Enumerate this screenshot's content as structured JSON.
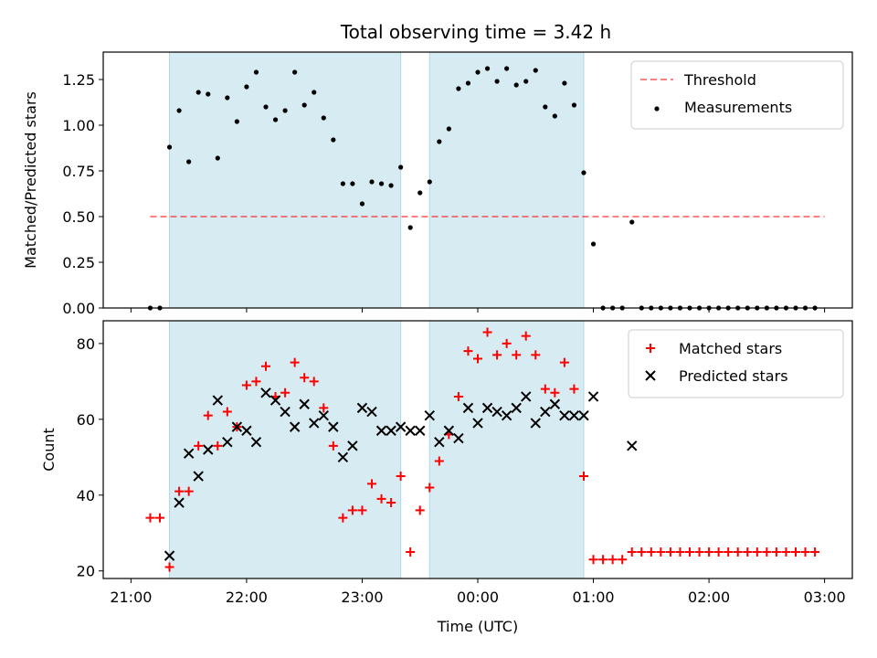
{
  "title": "Total observing time = 3.42 h",
  "colors": {
    "shade": "#add8e6",
    "threshold": "#ff0000",
    "measurement": "#000000",
    "matched": "#ff0000",
    "predicted": "#000000"
  },
  "chart_data": [
    {
      "type": "scatter",
      "id": "ratio",
      "ylabel": "Matched/Predicted stars",
      "xlim": [
        "21:00",
        "03:00"
      ],
      "ylim": [
        0,
        1.4
      ],
      "yticks": [
        0,
        0.25,
        0.5,
        0.75,
        1.0,
        1.25
      ],
      "ytick_labels": [
        "0.00",
        "0.25",
        "0.50",
        "0.75",
        "1.00",
        "1.25"
      ],
      "grid": false,
      "legend_position": "top-right",
      "legend": [
        "Threshold",
        "Measurements"
      ],
      "shaded_intervals": [
        [
          "21:20",
          "23:20"
        ],
        [
          "23:35",
          "00:55"
        ]
      ],
      "threshold": {
        "name": "Threshold",
        "y": 0.5,
        "x": [
          "21:10",
          "03:00"
        ]
      },
      "series": [
        {
          "name": "Measurements",
          "x": [
            "21:10",
            "21:15",
            "21:20",
            "21:25",
            "21:30",
            "21:35",
            "21:40",
            "21:45",
            "21:50",
            "21:55",
            "22:00",
            "22:05",
            "22:10",
            "22:15",
            "22:20",
            "22:25",
            "22:30",
            "22:35",
            "22:40",
            "22:45",
            "22:50",
            "22:55",
            "23:00",
            "23:05",
            "23:10",
            "23:15",
            "23:20",
            "23:25",
            "23:30",
            "23:35",
            "23:40",
            "23:45",
            "23:50",
            "23:55",
            "00:00",
            "00:05",
            "00:10",
            "00:15",
            "00:20",
            "00:25",
            "00:30",
            "00:35",
            "00:40",
            "00:45",
            "00:50",
            "00:55",
            "01:00",
            "01:05",
            "01:10",
            "01:15",
            "01:20",
            "01:25",
            "01:30",
            "01:35",
            "01:40",
            "01:45",
            "01:50",
            "01:55",
            "02:00",
            "02:05",
            "02:10",
            "02:15",
            "02:20",
            "02:25",
            "02:30",
            "02:35",
            "02:40",
            "02:45",
            "02:50",
            "02:55"
          ],
          "y": [
            0,
            0,
            0.88,
            1.08,
            0.8,
            1.18,
            1.17,
            0.82,
            1.15,
            1.02,
            1.21,
            1.29,
            1.1,
            1.03,
            1.08,
            1.29,
            1.11,
            1.18,
            1.04,
            0.92,
            0.68,
            0.68,
            0.57,
            0.69,
            0.68,
            0.67,
            0.77,
            0.44,
            0.63,
            0.69,
            0.91,
            0.98,
            1.2,
            1.23,
            1.29,
            1.31,
            1.24,
            1.31,
            1.22,
            1.24,
            1.3,
            1.1,
            1.05,
            1.23,
            1.11,
            0.74,
            0.35,
            0,
            0,
            0,
            0.47,
            0,
            0,
            0,
            0,
            0,
            0,
            0,
            0,
            0,
            0,
            0,
            0,
            0,
            0,
            0,
            0,
            0,
            0,
            0
          ]
        }
      ]
    },
    {
      "type": "scatter",
      "id": "counts",
      "xlabel": "Time (UTC)",
      "ylabel": "Count",
      "xlim": [
        "21:00",
        "03:00"
      ],
      "xtick_labels": [
        "21:00",
        "22:00",
        "23:00",
        "00:00",
        "01:00",
        "02:00",
        "03:00"
      ],
      "ylim": [
        18,
        86
      ],
      "yticks": [
        20,
        40,
        60,
        80
      ],
      "ytick_labels": [
        "20",
        "40",
        "60",
        "80"
      ],
      "grid": false,
      "legend_position": "top-right",
      "legend": [
        "Matched stars",
        "Predicted stars"
      ],
      "shaded_intervals": [
        [
          "21:20",
          "23:20"
        ],
        [
          "23:35",
          "00:55"
        ]
      ],
      "series": [
        {
          "name": "Matched stars",
          "x": [
            "21:10",
            "21:15",
            "21:20",
            "21:25",
            "21:30",
            "21:35",
            "21:40",
            "21:45",
            "21:50",
            "21:55",
            "22:00",
            "22:05",
            "22:10",
            "22:15",
            "22:20",
            "22:25",
            "22:30",
            "22:35",
            "22:40",
            "22:45",
            "22:50",
            "22:55",
            "23:00",
            "23:05",
            "23:10",
            "23:15",
            "23:20",
            "23:25",
            "23:30",
            "23:35",
            "23:40",
            "23:45",
            "23:50",
            "23:55",
            "00:00",
            "00:05",
            "00:10",
            "00:15",
            "00:20",
            "00:25",
            "00:30",
            "00:35",
            "00:40",
            "00:45",
            "00:50",
            "00:55",
            "01:00",
            "01:05",
            "01:10",
            "01:15",
            "01:20",
            "01:25",
            "01:30",
            "01:35",
            "01:40",
            "01:45",
            "01:50",
            "01:55",
            "02:00",
            "02:05",
            "02:10",
            "02:15",
            "02:20",
            "02:25",
            "02:30",
            "02:35",
            "02:40",
            "02:45",
            "02:50",
            "02:55"
          ],
          "y": [
            34,
            34,
            21,
            41,
            41,
            53,
            61,
            53,
            62,
            58,
            69,
            70,
            74,
            66,
            67,
            75,
            71,
            70,
            63,
            53,
            34,
            36,
            36,
            43,
            39,
            38,
            45,
            25,
            36,
            42,
            49,
            56,
            66,
            78,
            76,
            83,
            77,
            80,
            77,
            82,
            77,
            68,
            67,
            75,
            68,
            45,
            23,
            23,
            23,
            23,
            25,
            25,
            25,
            25,
            25,
            25,
            25,
            25,
            25,
            25,
            25,
            25,
            25,
            25,
            25,
            25,
            25,
            25,
            25,
            25
          ]
        },
        {
          "name": "Predicted stars",
          "x": [
            "21:20",
            "21:25",
            "21:30",
            "21:35",
            "21:40",
            "21:45",
            "21:50",
            "21:55",
            "22:00",
            "22:05",
            "22:10",
            "22:15",
            "22:20",
            "22:25",
            "22:30",
            "22:35",
            "22:40",
            "22:45",
            "22:50",
            "22:55",
            "23:00",
            "23:05",
            "23:10",
            "23:15",
            "23:20",
            "23:25",
            "23:30",
            "23:35",
            "23:40",
            "23:45",
            "23:50",
            "23:55",
            "00:00",
            "00:05",
            "00:10",
            "00:15",
            "00:20",
            "00:25",
            "00:30",
            "00:35",
            "00:40",
            "00:45",
            "00:50",
            "00:55",
            "01:00",
            "01:20"
          ],
          "y": [
            24,
            38,
            51,
            45,
            52,
            65,
            54,
            58,
            57,
            54,
            67,
            65,
            62,
            58,
            64,
            59,
            61,
            58,
            50,
            53,
            63,
            62,
            57,
            57,
            58,
            57,
            57,
            61,
            54,
            57,
            55,
            63,
            59,
            63,
            62,
            61,
            63,
            66,
            59,
            62,
            64,
            61,
            61,
            61,
            66,
            53
          ]
        }
      ]
    }
  ]
}
